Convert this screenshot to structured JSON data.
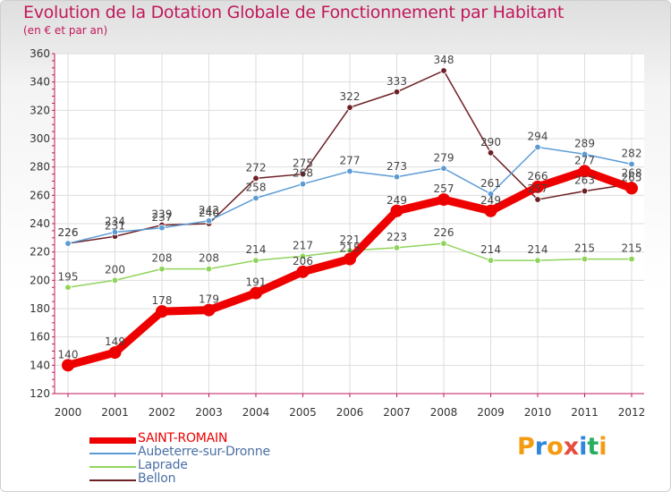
{
  "header": {
    "title": "Evolution de la Dotation Globale de Fonctionnement par Habitant",
    "subtitle": "(en € et par an)"
  },
  "logo": {
    "text": "Proxiti",
    "colors": [
      "#f39c12",
      "#2e86de",
      "#f39c12",
      "#e74c3c",
      "#2e86de",
      "#27ae60",
      "#f39c12"
    ]
  },
  "chart_data": {
    "type": "line",
    "title": "Evolution de la Dotation Globale de Fonctionnement par Habitant",
    "subtitle": "(en € et par an)",
    "x": [
      "2000",
      "2001",
      "2002",
      "2003",
      "2004",
      "2005",
      "2006",
      "2007",
      "2008",
      "2009",
      "2010",
      "2011",
      "2012"
    ],
    "ylim": [
      120,
      360
    ],
    "yticks": [
      120,
      140,
      160,
      180,
      200,
      220,
      240,
      260,
      280,
      300,
      320,
      340,
      360
    ],
    "grid": true,
    "legend_position": "bottom-left",
    "series": [
      {
        "name": "Bellon",
        "color": "#6d1f24",
        "emphasis": false,
        "values": [
          226,
          231,
          239,
          240,
          272,
          275,
          322,
          333,
          348,
          290,
          257,
          263,
          268
        ]
      },
      {
        "name": "Aubeterre-sur-Dronne",
        "color": "#5b9bd5",
        "emphasis": false,
        "values": [
          226,
          234,
          237,
          242,
          258,
          268,
          277,
          273,
          279,
          261,
          294,
          289,
          282
        ]
      },
      {
        "name": "Laprade",
        "color": "#8fd45a",
        "emphasis": false,
        "values": [
          195,
          200,
          208,
          208,
          214,
          217,
          221,
          223,
          226,
          214,
          214,
          215,
          215
        ]
      },
      {
        "name": "SAINT-ROMAIN",
        "color": "#ee0000",
        "emphasis": true,
        "values": [
          140,
          149,
          178,
          179,
          191,
          206,
          215,
          249,
          257,
          249,
          266,
          277,
          265
        ]
      }
    ],
    "legend_order": [
      "SAINT-ROMAIN",
      "Aubeterre-sur-Dronne",
      "Laprade",
      "Bellon"
    ]
  }
}
